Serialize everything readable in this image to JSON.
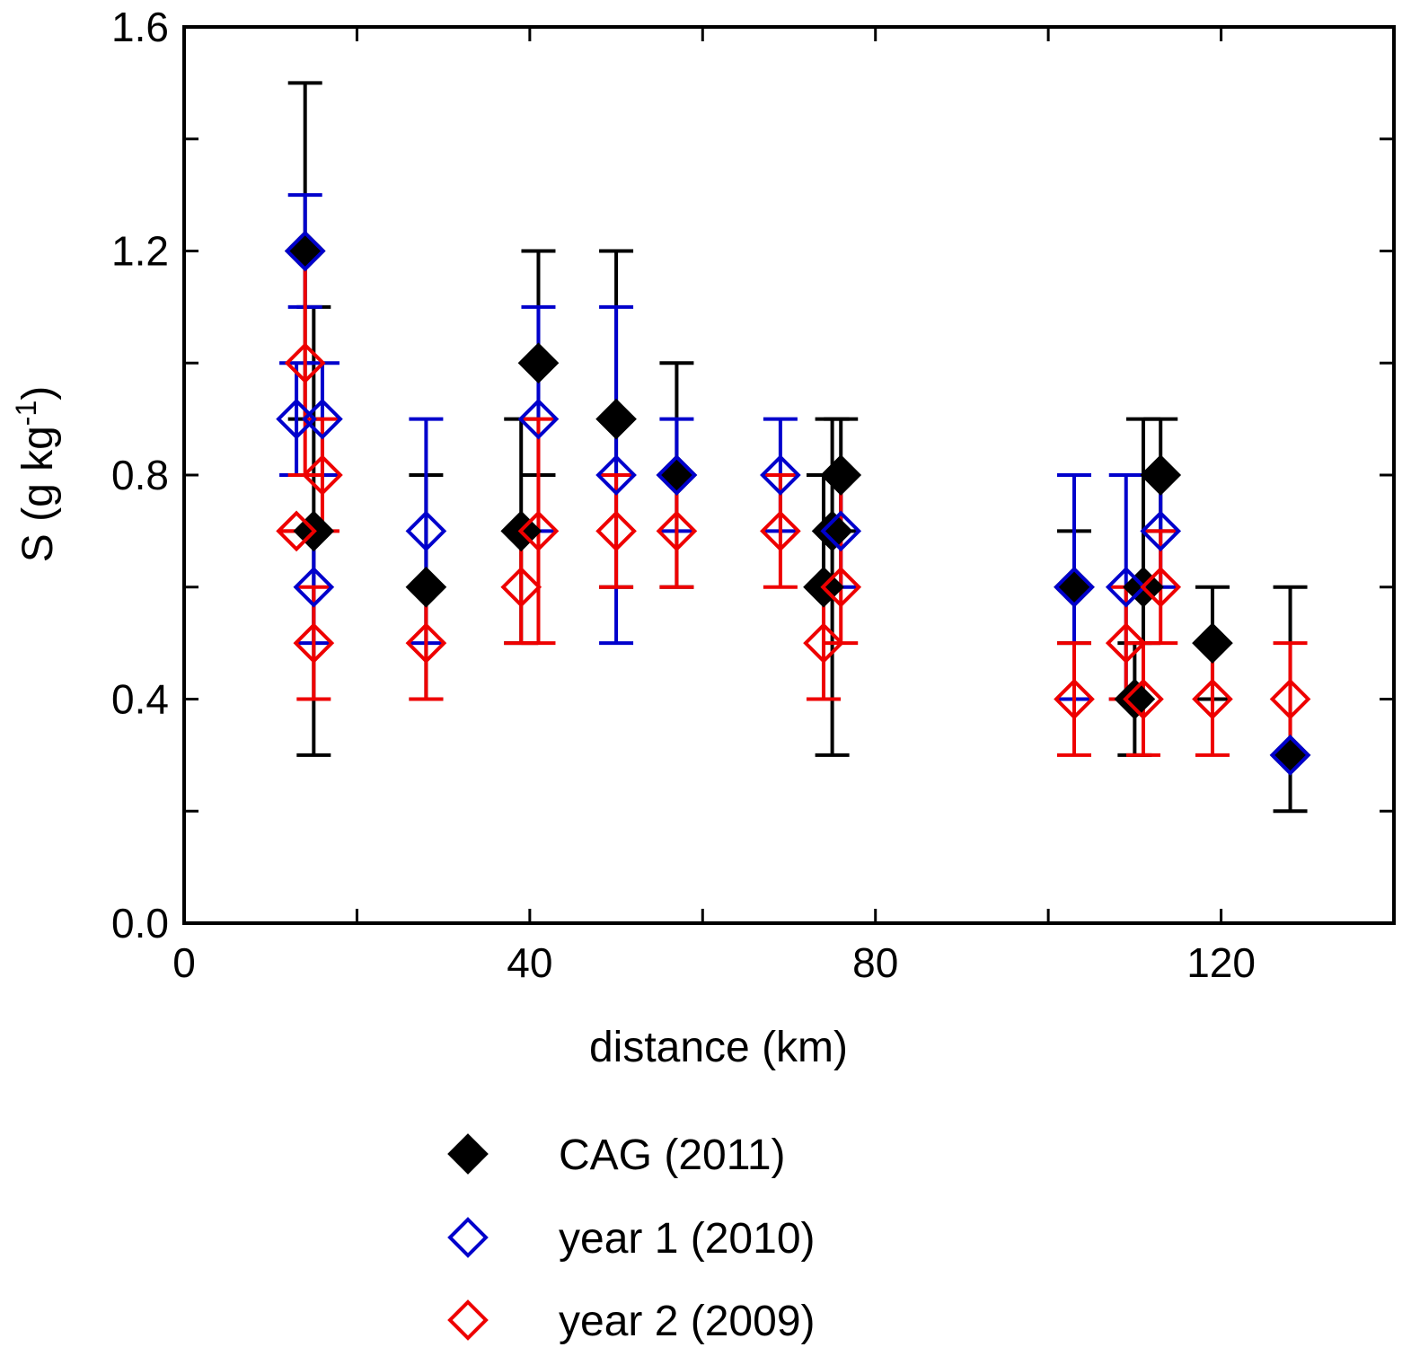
{
  "chart_data": {
    "type": "scatter",
    "title": "",
    "xlabel": "distance (km)",
    "ylabel_main": "S (g kg",
    "ylabel_sup": "-1",
    "ylabel_close": ")",
    "xlim": [
      0,
      140
    ],
    "ylim": [
      0.0,
      1.6
    ],
    "xticks": [
      0,
      20,
      40,
      60,
      80,
      100,
      120,
      140
    ],
    "xtick_labels": [
      {
        "value": 0,
        "label": "0"
      },
      {
        "value": 40,
        "label": "40"
      },
      {
        "value": 80,
        "label": "80"
      },
      {
        "value": 120,
        "label": "120"
      }
    ],
    "yticks": [
      0.0,
      0.2,
      0.4,
      0.6,
      0.8,
      1.0,
      1.2,
      1.4,
      1.6
    ],
    "ytick_labels": [
      {
        "value": 0.0,
        "label": "0.0"
      },
      {
        "value": 0.4,
        "label": "0.4"
      },
      {
        "value": 0.8,
        "label": "0.8"
      },
      {
        "value": 1.2,
        "label": "1.2"
      },
      {
        "value": 1.6,
        "label": "1.6"
      }
    ],
    "grid": false,
    "legend_position": "bottom",
    "series": [
      {
        "name": "CAG (2011)",
        "color": "#000000",
        "filled": true,
        "points": [
          {
            "x": 14,
            "y": 1.2,
            "lo": 0.9,
            "hi": 1.5
          },
          {
            "x": 15,
            "y": 0.7,
            "lo": 0.3,
            "hi": 1.1
          },
          {
            "x": 28,
            "y": 0.6,
            "lo": 0.4,
            "hi": 0.8
          },
          {
            "x": 39,
            "y": 0.7,
            "lo": 0.5,
            "hi": 0.9
          },
          {
            "x": 41,
            "y": 1.0,
            "lo": 0.8,
            "hi": 1.2
          },
          {
            "x": 50,
            "y": 0.9,
            "lo": 0.6,
            "hi": 1.2
          },
          {
            "x": 57,
            "y": 0.8,
            "lo": 0.6,
            "hi": 1.0
          },
          {
            "x": 74,
            "y": 0.6,
            "lo": 0.4,
            "hi": 0.8
          },
          {
            "x": 75,
            "y": 0.7,
            "lo": 0.3,
            "hi": 0.9
          },
          {
            "x": 76,
            "y": 0.8,
            "lo": 0.7,
            "hi": 0.9
          },
          {
            "x": 103,
            "y": 0.6,
            "lo": 0.5,
            "hi": 0.7
          },
          {
            "x": 110,
            "y": 0.4,
            "lo": 0.3,
            "hi": 0.5
          },
          {
            "x": 111,
            "y": 0.6,
            "lo": 0.5,
            "hi": 0.9
          },
          {
            "x": 113,
            "y": 0.8,
            "lo": 0.7,
            "hi": 0.9
          },
          {
            "x": 119,
            "y": 0.5,
            "lo": 0.4,
            "hi": 0.6
          },
          {
            "x": 128,
            "y": 0.3,
            "lo": 0.2,
            "hi": 0.6
          }
        ]
      },
      {
        "name": "year 1 (2010)",
        "color": "#0000cc",
        "filled": false,
        "points": [
          {
            "x": 14,
            "y": 1.2,
            "lo": 1.1,
            "hi": 1.3
          },
          {
            "x": 13,
            "y": 0.9,
            "lo": 0.8,
            "hi": 1.0
          },
          {
            "x": 16,
            "y": 0.9,
            "lo": 0.8,
            "hi": 1.0
          },
          {
            "x": 15,
            "y": 0.6,
            "lo": 0.5,
            "hi": 0.7
          },
          {
            "x": 28,
            "y": 0.7,
            "lo": 0.5,
            "hi": 0.9
          },
          {
            "x": 41,
            "y": 0.9,
            "lo": 0.7,
            "hi": 1.1
          },
          {
            "x": 50,
            "y": 0.8,
            "lo": 0.5,
            "hi": 1.1
          },
          {
            "x": 57,
            "y": 0.8,
            "lo": 0.7,
            "hi": 0.9
          },
          {
            "x": 69,
            "y": 0.8,
            "lo": 0.7,
            "hi": 0.9
          },
          {
            "x": 76,
            "y": 0.7,
            "lo": 0.6,
            "hi": 0.8
          },
          {
            "x": 103,
            "y": 0.6,
            "lo": 0.4,
            "hi": 0.8
          },
          {
            "x": 109,
            "y": 0.6,
            "lo": 0.4,
            "hi": 0.8
          },
          {
            "x": 113,
            "y": 0.7,
            "lo": 0.6,
            "hi": 0.8
          },
          {
            "x": 128,
            "y": 0.3,
            "lo": 0.3,
            "hi": 0.3
          }
        ]
      },
      {
        "name": "year 2 (2009)",
        "color": "#ee0000",
        "filled": false,
        "points": [
          {
            "x": 14,
            "y": 1.0,
            "lo": 0.8,
            "hi": 1.2
          },
          {
            "x": 13,
            "y": 0.7,
            "lo": 0.7,
            "hi": 0.7
          },
          {
            "x": 16,
            "y": 0.8,
            "lo": 0.7,
            "hi": 0.9
          },
          {
            "x": 15,
            "y": 0.5,
            "lo": 0.4,
            "hi": 0.6
          },
          {
            "x": 28,
            "y": 0.5,
            "lo": 0.4,
            "hi": 0.6
          },
          {
            "x": 39,
            "y": 0.6,
            "lo": 0.5,
            "hi": 0.7
          },
          {
            "x": 41,
            "y": 0.7,
            "lo": 0.5,
            "hi": 0.9
          },
          {
            "x": 50,
            "y": 0.7,
            "lo": 0.6,
            "hi": 0.8
          },
          {
            "x": 57,
            "y": 0.7,
            "lo": 0.6,
            "hi": 0.8
          },
          {
            "x": 69,
            "y": 0.7,
            "lo": 0.6,
            "hi": 0.8
          },
          {
            "x": 74,
            "y": 0.5,
            "lo": 0.4,
            "hi": 0.6
          },
          {
            "x": 76,
            "y": 0.6,
            "lo": 0.5,
            "hi": 0.8
          },
          {
            "x": 103,
            "y": 0.4,
            "lo": 0.3,
            "hi": 0.5
          },
          {
            "x": 109,
            "y": 0.5,
            "lo": 0.4,
            "hi": 0.6
          },
          {
            "x": 111,
            "y": 0.4,
            "lo": 0.3,
            "hi": 0.5
          },
          {
            "x": 113,
            "y": 0.6,
            "lo": 0.5,
            "hi": 0.7
          },
          {
            "x": 119,
            "y": 0.4,
            "lo": 0.3,
            "hi": 0.5
          },
          {
            "x": 128,
            "y": 0.4,
            "lo": 0.3,
            "hi": 0.5
          }
        ]
      }
    ]
  }
}
